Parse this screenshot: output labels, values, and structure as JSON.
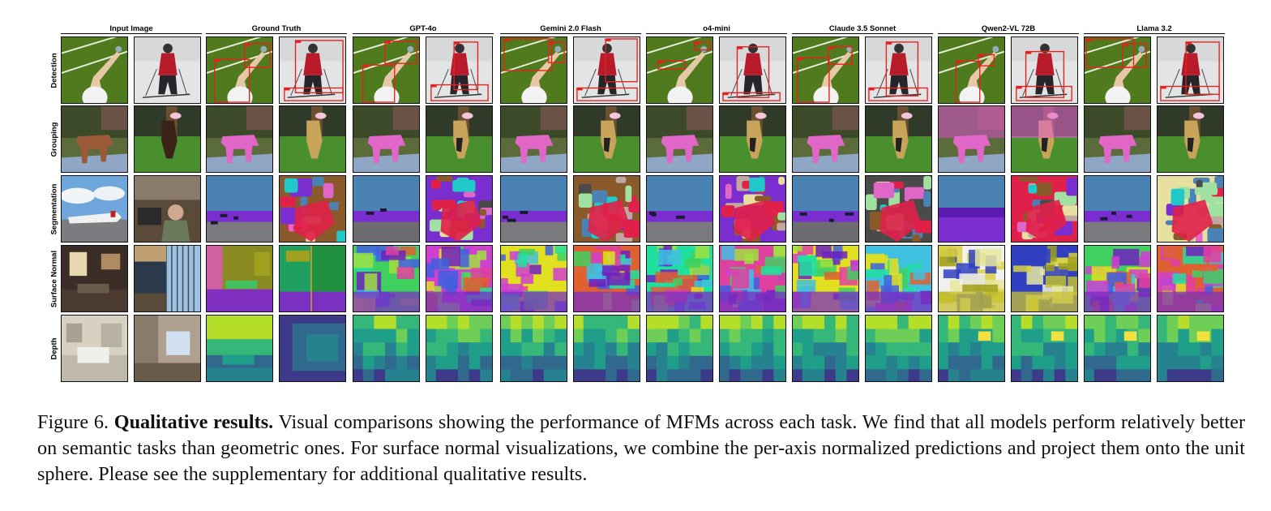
{
  "figure": {
    "columns": [
      {
        "label": "Input Image"
      },
      {
        "label": "Ground Truth"
      },
      {
        "label": "GPT-4o"
      },
      {
        "label": "Gemini 2.0 Flash"
      },
      {
        "label": "o4-mini"
      },
      {
        "label": "Claude 3.5 Sonnet"
      },
      {
        "label": "Qwen2-VL 72B"
      },
      {
        "label": "Llama 3.2"
      }
    ],
    "rows": [
      {
        "label": "Detection",
        "kind": "detection"
      },
      {
        "label": "Grouping",
        "kind": "grouping"
      },
      {
        "label": "Segmentation",
        "kind": "segmentation"
      },
      {
        "label": "Surface Normal",
        "kind": "normal"
      },
      {
        "label": "Depth",
        "kind": "depth"
      }
    ],
    "colors": {
      "detection_box": "#e8201c",
      "grouping_mask_pink": "#e066c8",
      "grouping_mask_tan": "#c8a45a",
      "seg_sky": "#4a82b4",
      "seg_purple": "#7a2ed0",
      "seg_red": "#e02048",
      "depth_low": "#3b0f70",
      "depth_high": "#f0e040"
    }
  },
  "caption": {
    "label": "Figure 6.",
    "title": "Qualitative results.",
    "text": "Visual comparisons showing the performance of MFMs across each task. We find that all models perform relatively better on semantic tasks than geometric ones. For surface normal visualizations, we combine the per-axis normalized predictions and project them onto the unit sphere. Please see the supplementary for additional qualitative results."
  }
}
